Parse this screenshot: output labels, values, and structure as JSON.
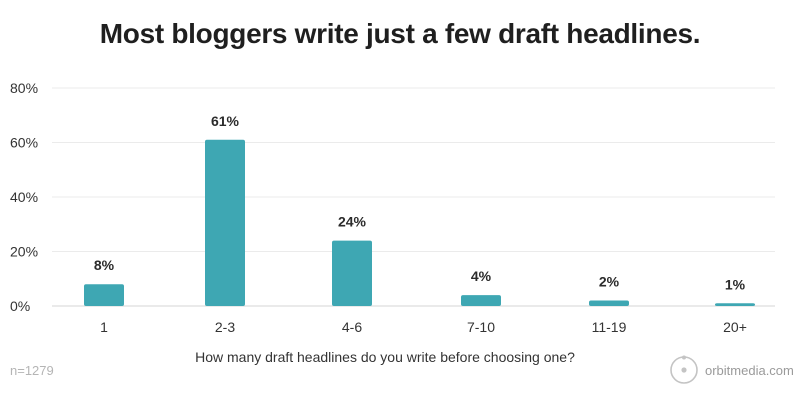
{
  "chart_data": {
    "type": "bar",
    "title": "Most bloggers write just a few draft headlines.",
    "xlabel": "How many draft headlines do you write before choosing one?",
    "ylabel": "",
    "categories": [
      "1",
      "2-3",
      "4-6",
      "7-10",
      "11-19",
      "20+"
    ],
    "values": [
      8,
      61,
      24,
      4,
      2,
      1
    ],
    "value_labels": [
      "8%",
      "61%",
      "24%",
      "4%",
      "2%",
      "1%"
    ],
    "ylim": [
      0,
      80
    ],
    "yticks": [
      0,
      20,
      40,
      60,
      80
    ],
    "ytick_labels": [
      "0%",
      "20%",
      "40%",
      "60%",
      "80%"
    ],
    "grid": true,
    "bar_color": "#3ea7b3"
  },
  "footer": {
    "sample_size": "n=1279",
    "brand_text": "orbitmedia.com",
    "brand_icon": "orbit-logo-icon"
  }
}
